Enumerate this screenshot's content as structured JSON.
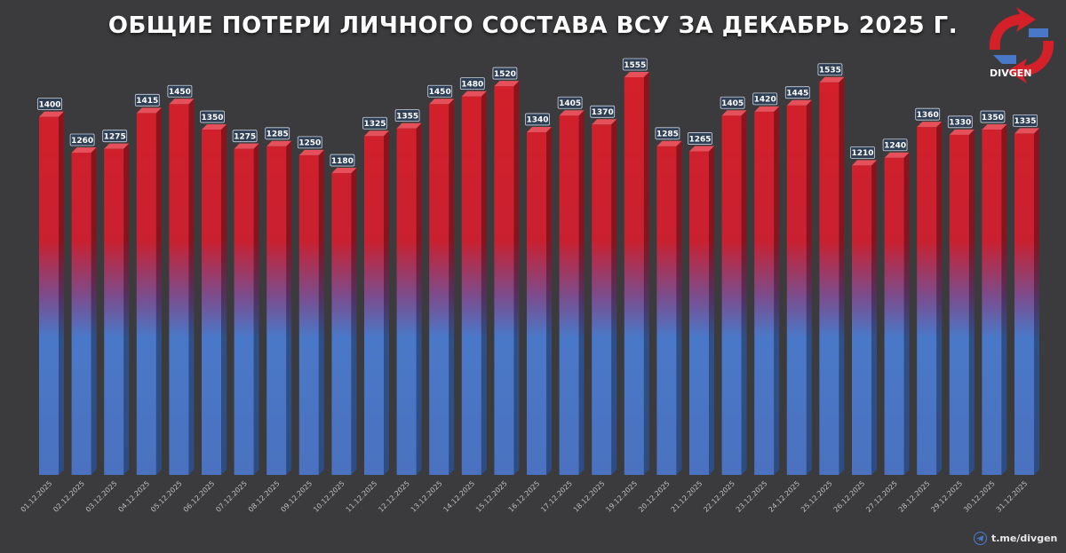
{
  "chart_data": {
    "type": "bar",
    "title": "ОБЩИЕ ПОТЕРИ ЛИЧНОГО СОСТАВА ВСУ ЗА ДЕКАБРЬ 2025 Г.",
    "categories": [
      "01.12.2025",
      "02.12.2025",
      "03.12.2025",
      "04.12.2025",
      "05.12.2025",
      "06.12.2025",
      "07.12.2025",
      "08.12.2025",
      "09.12.2025",
      "10.12.2025",
      "11.12.2025",
      "12.12.2025",
      "13.12.2025",
      "14.12.2025",
      "15.12.2025",
      "16.12.2025",
      "17.12.2025",
      "18.12.2025",
      "19.12.2025",
      "20.12.2025",
      "21.12.2025",
      "22.12.2025",
      "23.12.2025",
      "24.12.2025",
      "25.12.2025",
      "26.12.2025",
      "27.12.2025",
      "28.12.2025",
      "29.12.2025",
      "30.12.2025",
      "31.12.2025"
    ],
    "values": [
      1400,
      1260,
      1275,
      1415,
      1450,
      1350,
      1275,
      1285,
      1250,
      1180,
      1325,
      1355,
      1450,
      1480,
      1520,
      1340,
      1405,
      1370,
      1555,
      1285,
      1265,
      1405,
      1420,
      1445,
      1535,
      1210,
      1240,
      1360,
      1330,
      1350,
      1335
    ],
    "ylim": [
      0,
      1555
    ],
    "grid": false,
    "legend": "none",
    "colors": {
      "top": "#d42029",
      "bottom": "#4a78c8",
      "label_bg": "#2f3f55",
      "label_border": "#c9d3e0"
    }
  },
  "branding": {
    "logo_text": "DIVGEN",
    "footer_text": "t.me/divgen",
    "footer_icon": "telegram-icon",
    "logo_icon": "divgen-logo-icon"
  }
}
